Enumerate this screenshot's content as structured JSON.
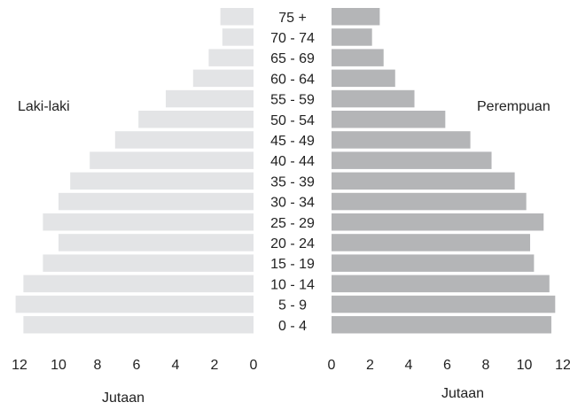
{
  "chart_data": {
    "type": "bar",
    "layout": "population-pyramid",
    "categories": [
      "0 - 4",
      "5 - 9",
      "10 - 14",
      "15 - 19",
      "20 - 24",
      "25 - 29",
      "30 - 34",
      "35 - 39",
      "40 - 44",
      "45 - 49",
      "50 - 54",
      "55 - 59",
      "60 - 64",
      "65 - 69",
      "70 - 74",
      "75 +"
    ],
    "series": [
      {
        "name": "Laki-laki",
        "side": "left",
        "color": "#e3e4e6",
        "values": [
          11.8,
          12.2,
          11.8,
          10.8,
          10.0,
          10.8,
          10.0,
          9.4,
          8.4,
          7.1,
          5.9,
          4.5,
          3.1,
          2.3,
          1.6,
          1.7
        ]
      },
      {
        "name": "Perempuan",
        "side": "right",
        "color": "#b4b5b7",
        "values": [
          11.4,
          11.6,
          11.3,
          10.5,
          10.3,
          11.0,
          10.1,
          9.5,
          8.3,
          7.2,
          5.9,
          4.3,
          3.3,
          2.7,
          2.1,
          2.5
        ]
      }
    ],
    "xlim": [
      0,
      12
    ],
    "xticks_left": [
      "12",
      "10",
      "8",
      "6",
      "4",
      "2",
      "0"
    ],
    "xticks_right": [
      "0",
      "2",
      "4",
      "6",
      "8",
      "10",
      "12"
    ],
    "unit_left": "Jutaan",
    "unit_right": "Jutaan",
    "grid": false,
    "legend": "none"
  }
}
